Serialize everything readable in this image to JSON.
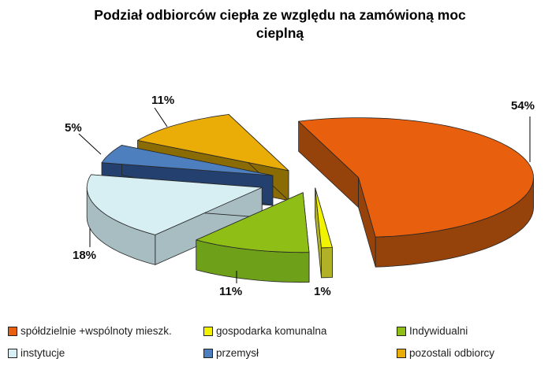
{
  "chart_data": {
    "type": "pie",
    "style": "3d-exploded",
    "title": "Podział odbiorców ciepła ze względu na zamówioną moc cieplną",
    "legend_position": "bottom",
    "background": "#ffffff",
    "slices": [
      {
        "label": "spółdzielnie +wspólnoty mieszk.",
        "value": 54,
        "pct_label": "54%",
        "color": "#E8600D",
        "side_color": "#96430B"
      },
      {
        "label": "gospodarka komunalna",
        "value": 1,
        "pct_label": "1%",
        "color": "#F2F203",
        "side_color": "#B1B128"
      },
      {
        "label": "Indywidualni",
        "value": 11,
        "pct_label": "11%",
        "color": "#8FBF16",
        "side_color": "#6FA01A"
      },
      {
        "label": "instytucje",
        "value": 18,
        "pct_label": "18%",
        "color": "#D7EFF2",
        "side_color": "#A7BDC2"
      },
      {
        "label": "przemysł",
        "value": 5,
        "pct_label": "5%",
        "color": "#4D7EBE",
        "side_color": "#24406E"
      },
      {
        "label": "pozostali odbiorcy",
        "value": 11,
        "pct_label": "11%",
        "color": "#EAAD08",
        "side_color": "#8A6B04"
      }
    ]
  }
}
